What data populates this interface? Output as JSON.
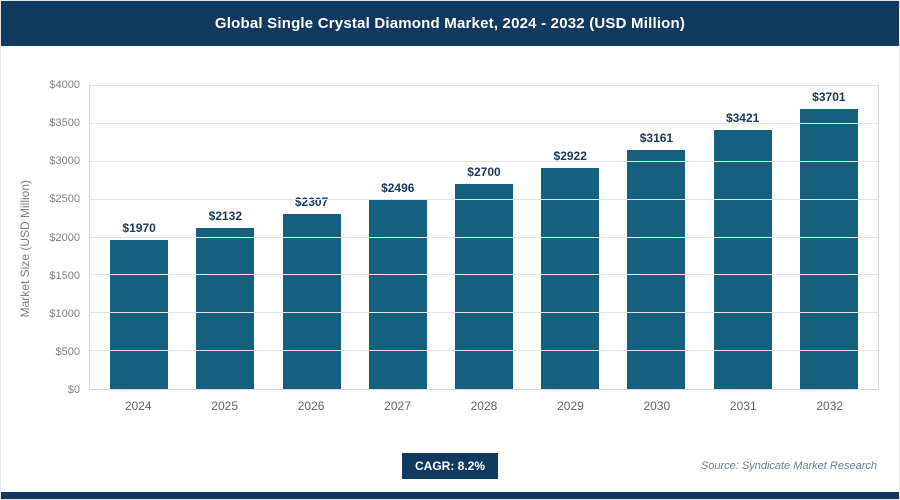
{
  "header": {
    "title": "Global Single Crystal Diamond Market, 2024 - 2032 (USD Million)"
  },
  "chart_data": {
    "type": "bar",
    "title": "Global Single Crystal Diamond Market, 2024 - 2032 (USD Million)",
    "categories": [
      "2024",
      "2025",
      "2026",
      "2027",
      "2028",
      "2029",
      "2030",
      "2031",
      "2032"
    ],
    "values": [
      1970,
      2132,
      2307,
      2496,
      2700,
      2922,
      3161,
      3421,
      3701
    ],
    "value_labels": [
      "$1970",
      "$2132",
      "$2307",
      "$2496",
      "$2700",
      "$2922",
      "$3161",
      "$3421",
      "$3701"
    ],
    "xlabel": "",
    "ylabel": "Market Size (USD Million)",
    "ylim": [
      0,
      4000
    ],
    "yticks": [
      0,
      500,
      1000,
      1500,
      2000,
      2500,
      3000,
      3500,
      4000
    ],
    "ytick_labels": [
      "$0",
      "$500",
      "$1000",
      "$1500",
      "$2000",
      "$2500",
      "$3000",
      "$3500",
      "$4000"
    ],
    "bar_color": "#15607e",
    "grid": true,
    "legend": false
  },
  "footer": {
    "cagr_label": "CAGR: 8.2%",
    "source": "Source: Syndicate Market Research"
  },
  "colors": {
    "header_bg": "#123a61",
    "bar": "#15607e",
    "value_label": "#16395f",
    "tick_label": "#808080",
    "gridline": "#e4e4e4"
  }
}
